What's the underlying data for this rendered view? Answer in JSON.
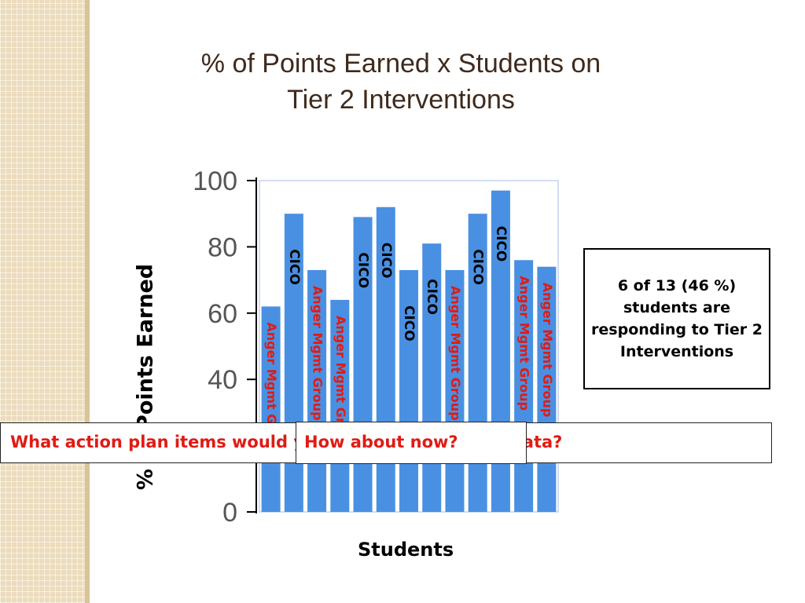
{
  "title": {
    "line1": "% of Points Earned x Students on",
    "line2": "Tier 2 Interventions"
  },
  "chart_data": {
    "type": "bar",
    "title": "% of Points Earned x Students on Tier 2 Interventions",
    "xlabel": "Students",
    "ylabel": "% of Points Earned",
    "ylim": [
      0,
      100
    ],
    "yticks": [
      "0",
      "20",
      "40",
      "60",
      "80",
      "100"
    ],
    "grid": false,
    "bar_color": "#4a90e2",
    "label_colors": {
      "CICO": "#000000",
      "Anger Mgmt": "#e01b14"
    },
    "values": [
      62,
      90,
      73,
      64,
      89,
      92,
      73,
      81,
      73,
      90,
      97,
      76,
      74
    ],
    "bar_labels": [
      "Anger Mgmt Group",
      "CICO",
      "Anger Mgmt Group",
      "Anger Mgmt Group",
      "CICO",
      "CICO",
      "CICO",
      "CICO",
      "Anger Mgmt Group",
      "CICO",
      "CICO",
      "Anger Mgmt Group",
      "Anger Mgmt Group"
    ]
  },
  "note": "6 of 13 (46 %) students are responding to Tier 2 Interventions",
  "question_back": "What action plan items would you suggest given this data?",
  "question_front": "How about now?"
}
